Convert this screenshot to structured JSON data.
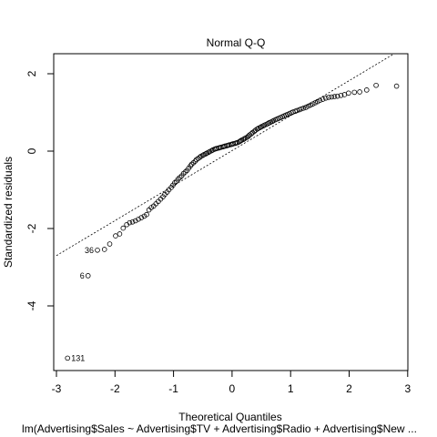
{
  "chart_data": {
    "type": "scatter",
    "title": "Normal Q-Q",
    "xlabel": "Theoretical Quantiles",
    "ylabel": "Standardized residuals",
    "subtitle": "lm(Advertising$Sales ~ Advertising$TV + Advertising$Radio + Advertising$New ...",
    "xlim": [
      -3,
      3
    ],
    "ylim": [
      -5.6,
      2.5
    ],
    "x_ticks": [
      -3,
      -2,
      -1,
      0,
      1,
      2,
      3
    ],
    "y_ticks": [
      -4,
      -2,
      0,
      2
    ],
    "grid": false,
    "reference_line": {
      "style": "dotted",
      "p1": [
        -3,
        -2.7
      ],
      "p2": [
        2.75,
        2.5
      ]
    },
    "labeled_points": [
      {
        "label": "131",
        "x": -2.81,
        "y": -5.35
      },
      {
        "label": "6",
        "x": -2.46,
        "y": -3.22
      },
      {
        "label": "36",
        "x": -2.3,
        "y": -2.56
      }
    ],
    "points": [
      [
        -2.81,
        -5.35
      ],
      [
        -2.46,
        -3.22
      ],
      [
        -2.3,
        -2.56
      ],
      [
        -2.18,
        -2.54
      ],
      [
        -2.09,
        -2.4
      ],
      [
        -1.99,
        -2.19
      ],
      [
        -1.92,
        -2.14
      ],
      [
        -1.86,
        -1.99
      ],
      [
        -1.8,
        -1.9
      ],
      [
        -1.75,
        -1.85
      ],
      [
        -1.7,
        -1.83
      ],
      [
        -1.65,
        -1.8
      ],
      [
        -1.6,
        -1.76
      ],
      [
        -1.55,
        -1.72
      ],
      [
        -1.5,
        -1.68
      ],
      [
        -1.46,
        -1.64
      ],
      [
        -1.42,
        -1.52
      ],
      [
        -1.38,
        -1.46
      ],
      [
        -1.34,
        -1.42
      ],
      [
        -1.3,
        -1.36
      ],
      [
        -1.26,
        -1.3
      ],
      [
        -1.22,
        -1.24
      ],
      [
        -1.18,
        -1.18
      ],
      [
        -1.15,
        -1.12
      ],
      [
        -1.11,
        -1.06
      ],
      [
        -1.08,
        -1.0
      ],
      [
        -1.04,
        -0.94
      ],
      [
        -1.01,
        -0.88
      ],
      [
        -0.98,
        -0.82
      ],
      [
        -0.95,
        -0.78
      ],
      [
        -0.92,
        -0.72
      ],
      [
        -0.89,
        -0.68
      ],
      [
        -0.86,
        -0.64
      ],
      [
        -0.83,
        -0.58
      ],
      [
        -0.8,
        -0.54
      ],
      [
        -0.77,
        -0.5
      ],
      [
        -0.74,
        -0.44
      ],
      [
        -0.71,
        -0.38
      ],
      [
        -0.69,
        -0.34
      ],
      [
        -0.66,
        -0.3
      ],
      [
        -0.63,
        -0.26
      ],
      [
        -0.61,
        -0.22
      ],
      [
        -0.58,
        -0.19
      ],
      [
        -0.55,
        -0.16
      ],
      [
        -0.53,
        -0.13
      ],
      [
        -0.5,
        -0.11
      ],
      [
        -0.48,
        -0.09
      ],
      [
        -0.45,
        -0.07
      ],
      [
        -0.43,
        -0.05
      ],
      [
        -0.4,
        -0.03
      ],
      [
        -0.38,
        -0.01
      ],
      [
        -0.35,
        0.01
      ],
      [
        -0.33,
        0.03
      ],
      [
        -0.3,
        0.05
      ],
      [
        -0.28,
        0.06
      ],
      [
        -0.26,
        0.07
      ],
      [
        -0.23,
        0.08
      ],
      [
        -0.21,
        0.09
      ],
      [
        -0.19,
        0.1
      ],
      [
        -0.16,
        0.11
      ],
      [
        -0.14,
        0.12
      ],
      [
        -0.12,
        0.13
      ],
      [
        -0.09,
        0.14
      ],
      [
        -0.07,
        0.15
      ],
      [
        -0.05,
        0.16
      ],
      [
        -0.02,
        0.17
      ],
      [
        0.0,
        0.18
      ],
      [
        0.02,
        0.19
      ],
      [
        0.05,
        0.2
      ],
      [
        0.07,
        0.21
      ],
      [
        0.09,
        0.22
      ],
      [
        0.12,
        0.24
      ],
      [
        0.14,
        0.26
      ],
      [
        0.16,
        0.28
      ],
      [
        0.19,
        0.3
      ],
      [
        0.21,
        0.32
      ],
      [
        0.23,
        0.34
      ],
      [
        0.26,
        0.36
      ],
      [
        0.28,
        0.39
      ],
      [
        0.3,
        0.42
      ],
      [
        0.33,
        0.45
      ],
      [
        0.35,
        0.48
      ],
      [
        0.38,
        0.51
      ],
      [
        0.4,
        0.54
      ],
      [
        0.43,
        0.57
      ],
      [
        0.45,
        0.59
      ],
      [
        0.48,
        0.61
      ],
      [
        0.5,
        0.63
      ],
      [
        0.53,
        0.65
      ],
      [
        0.55,
        0.67
      ],
      [
        0.58,
        0.69
      ],
      [
        0.61,
        0.71
      ],
      [
        0.63,
        0.73
      ],
      [
        0.66,
        0.75
      ],
      [
        0.69,
        0.77
      ],
      [
        0.71,
        0.79
      ],
      [
        0.74,
        0.81
      ],
      [
        0.77,
        0.83
      ],
      [
        0.8,
        0.85
      ],
      [
        0.83,
        0.87
      ],
      [
        0.86,
        0.89
      ],
      [
        0.89,
        0.91
      ],
      [
        0.92,
        0.93
      ],
      [
        0.95,
        0.95
      ],
      [
        0.98,
        0.97
      ],
      [
        1.01,
        0.99
      ],
      [
        1.04,
        1.01
      ],
      [
        1.08,
        1.03
      ],
      [
        1.11,
        1.05
      ],
      [
        1.15,
        1.07
      ],
      [
        1.18,
        1.09
      ],
      [
        1.22,
        1.11
      ],
      [
        1.26,
        1.13
      ],
      [
        1.3,
        1.16
      ],
      [
        1.34,
        1.19
      ],
      [
        1.38,
        1.22
      ],
      [
        1.42,
        1.25
      ],
      [
        1.46,
        1.28
      ],
      [
        1.5,
        1.31
      ],
      [
        1.55,
        1.34
      ],
      [
        1.6,
        1.37
      ],
      [
        1.65,
        1.39
      ],
      [
        1.7,
        1.4
      ],
      [
        1.75,
        1.41
      ],
      [
        1.8,
        1.42
      ],
      [
        1.86,
        1.44
      ],
      [
        1.92,
        1.46
      ],
      [
        1.99,
        1.5
      ],
      [
        2.09,
        1.52
      ],
      [
        2.18,
        1.53
      ],
      [
        2.3,
        1.58
      ],
      [
        2.46,
        1.7
      ],
      [
        2.81,
        1.68
      ]
    ]
  }
}
